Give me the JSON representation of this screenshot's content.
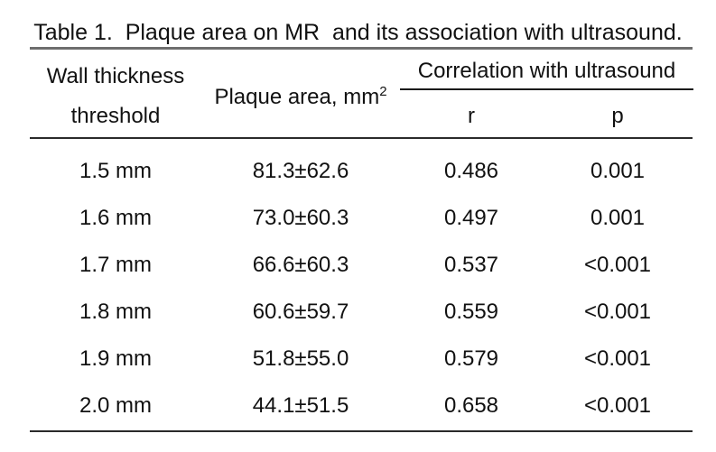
{
  "title": "Table 1.  Plaque area on MR  and its association with ultrasound.",
  "table": {
    "headers": {
      "col1_line1": "Wall thickness",
      "col1_line2": "threshold",
      "col2_label": "Plaque area, mm",
      "col2_superscript": "2",
      "spanner": "Correlation with ultrasound",
      "r": "r",
      "p": "p"
    },
    "rows": [
      {
        "threshold": "1.5 mm",
        "plaque_area": "81.3±62.6",
        "r": "0.486",
        "p": "0.001"
      },
      {
        "threshold": "1.6 mm",
        "plaque_area": "73.0±60.3",
        "r": "0.497",
        "p": "0.001"
      },
      {
        "threshold": "1.7 mm",
        "plaque_area": "66.6±60.3",
        "r": "0.537",
        "p": "<0.001"
      },
      {
        "threshold": "1.8 mm",
        "plaque_area": "60.6±59.7",
        "r": "0.559",
        "p": "<0.001"
      },
      {
        "threshold": "1.9 mm",
        "plaque_area": "51.8±55.0",
        "r": "0.579",
        "p": "<0.001"
      },
      {
        "threshold": "2.0 mm",
        "plaque_area": "44.1±51.5",
        "r": "0.658",
        "p": "<0.001"
      }
    ]
  },
  "colors": {
    "background": "#ffffff",
    "text": "#111111",
    "top_rule": "#6e6e6e",
    "thin_rule": "#2a2a2a"
  }
}
